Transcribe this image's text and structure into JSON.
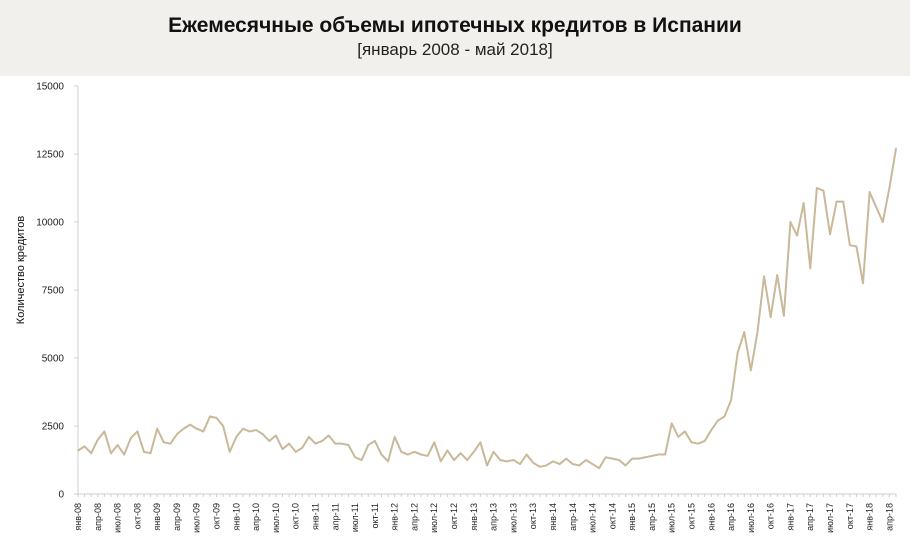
{
  "chart_data": {
    "type": "line",
    "title": "Ежемесячные объемы ипотечных кредитов в Испании",
    "subtitle": "[январь 2008 - май 2018]",
    "xlabel": "",
    "ylabel": "Количество кредитов",
    "ylim": [
      0,
      15000
    ],
    "yticks": [
      0,
      2500,
      5000,
      7500,
      10000,
      12500,
      15000
    ],
    "grid": false,
    "line_color": "#c9b99a",
    "x": [
      "янв-08",
      "фев-08",
      "мар-08",
      "апр-08",
      "май-08",
      "июн-08",
      "июл-08",
      "авг-08",
      "сен-08",
      "окт-08",
      "ноя-08",
      "дек-08",
      "янв-09",
      "фев-09",
      "мар-09",
      "апр-09",
      "май-09",
      "июн-09",
      "июл-09",
      "авг-09",
      "сен-09",
      "окт-09",
      "ноя-09",
      "дек-09",
      "янв-10",
      "фев-10",
      "мар-10",
      "апр-10",
      "май-10",
      "июн-10",
      "июл-10",
      "авг-10",
      "сен-10",
      "окт-10",
      "ноя-10",
      "дек-10",
      "янв-11",
      "фев-11",
      "мар-11",
      "апр-11",
      "май-11",
      "июн-11",
      "июл-11",
      "авг-11",
      "сен-11",
      "окт-11",
      "ноя-11",
      "дек-11",
      "янв-12",
      "фев-12",
      "мар-12",
      "апр-12",
      "май-12",
      "июн-12",
      "июл-12",
      "авг-12",
      "сен-12",
      "окт-12",
      "ноя-12",
      "дек-12",
      "янв-13",
      "фев-13",
      "мар-13",
      "апр-13",
      "май-13",
      "июн-13",
      "июл-13",
      "авг-13",
      "сен-13",
      "окт-13",
      "ноя-13",
      "дек-13",
      "янв-14",
      "фев-14",
      "мар-14",
      "апр-14",
      "май-14",
      "июн-14",
      "июл-14",
      "авг-14",
      "сен-14",
      "окт-14",
      "ноя-14",
      "дек-14",
      "янв-15",
      "фев-15",
      "мар-15",
      "апр-15",
      "май-15",
      "июн-15",
      "июл-15",
      "авг-15",
      "сен-15",
      "окт-15",
      "ноя-15",
      "дек-15",
      "янв-16",
      "фев-16",
      "мар-16",
      "апр-16",
      "май-16",
      "июн-16",
      "июл-16",
      "авг-16",
      "сен-16",
      "окт-16",
      "ноя-16",
      "дек-16",
      "янв-17",
      "фев-17",
      "мар-17",
      "апр-17",
      "май-17",
      "июн-17",
      "июл-17",
      "авг-17",
      "сен-17",
      "окт-17",
      "ноя-17",
      "дек-17",
      "янв-18",
      "фев-18",
      "мар-18",
      "апр-18",
      "май-18"
    ],
    "xtick_labels": [
      "янв-08",
      "апр-08",
      "июл-08",
      "окт-08",
      "янв-09",
      "апр-09",
      "июл-09",
      "окт-09",
      "янв-10",
      "апр-10",
      "июл-10",
      "окт-10",
      "янв-11",
      "апр-11",
      "июл-11",
      "окт-11",
      "янв-12",
      "апр-12",
      "июл-12",
      "окт-12",
      "янв-13",
      "апр-13",
      "июл-13",
      "окт-13",
      "янв-14",
      "апр-14",
      "июл-14",
      "окт-14",
      "янв-15",
      "апр-15",
      "июл-15",
      "окт-15",
      "янв-16",
      "апр-16",
      "июл-16",
      "окт-16",
      "янв-17",
      "апр-17",
      "июл-17",
      "окт-17",
      "янв-18",
      "апр-18"
    ],
    "series": [
      {
        "values": [
          1600,
          1750,
          1500,
          2000,
          2300,
          1500,
          1800,
          1450,
          2050,
          2300,
          1550,
          1500,
          2400,
          1900,
          1850,
          2200,
          2400,
          2550,
          2400,
          2300,
          2850,
          2800,
          2500,
          1550,
          2100,
          2400,
          2300,
          2350,
          2200,
          1950,
          2150,
          1650,
          1850,
          1550,
          1700,
          2100,
          1850,
          1950,
          2150,
          1850,
          1850,
          1800,
          1350,
          1250,
          1800,
          1950,
          1450,
          1200,
          2100,
          1550,
          1450,
          1550,
          1450,
          1400,
          1900,
          1200,
          1600,
          1250,
          1500,
          1250,
          1550,
          1900,
          1050,
          1550,
          1250,
          1200,
          1250,
          1100,
          1450,
          1150,
          1000,
          1050,
          1200,
          1100,
          1300,
          1100,
          1050,
          1250,
          1100,
          950,
          1350,
          1300,
          1250,
          1050,
          1300,
          1300,
          1350,
          1400,
          1450,
          1450,
          2600,
          2100,
          2300,
          1900,
          1850,
          1950,
          2350,
          2700,
          2850,
          3450,
          5200,
          5950,
          4550,
          5950,
          8000,
          6500,
          8050,
          6550,
          10000,
          9500,
          10700,
          8300,
          11250,
          11150,
          9550,
          10750,
          10750,
          9150,
          9100,
          7750,
          11100,
          10550,
          10000,
          11250,
          12700
        ]
      }
    ]
  }
}
